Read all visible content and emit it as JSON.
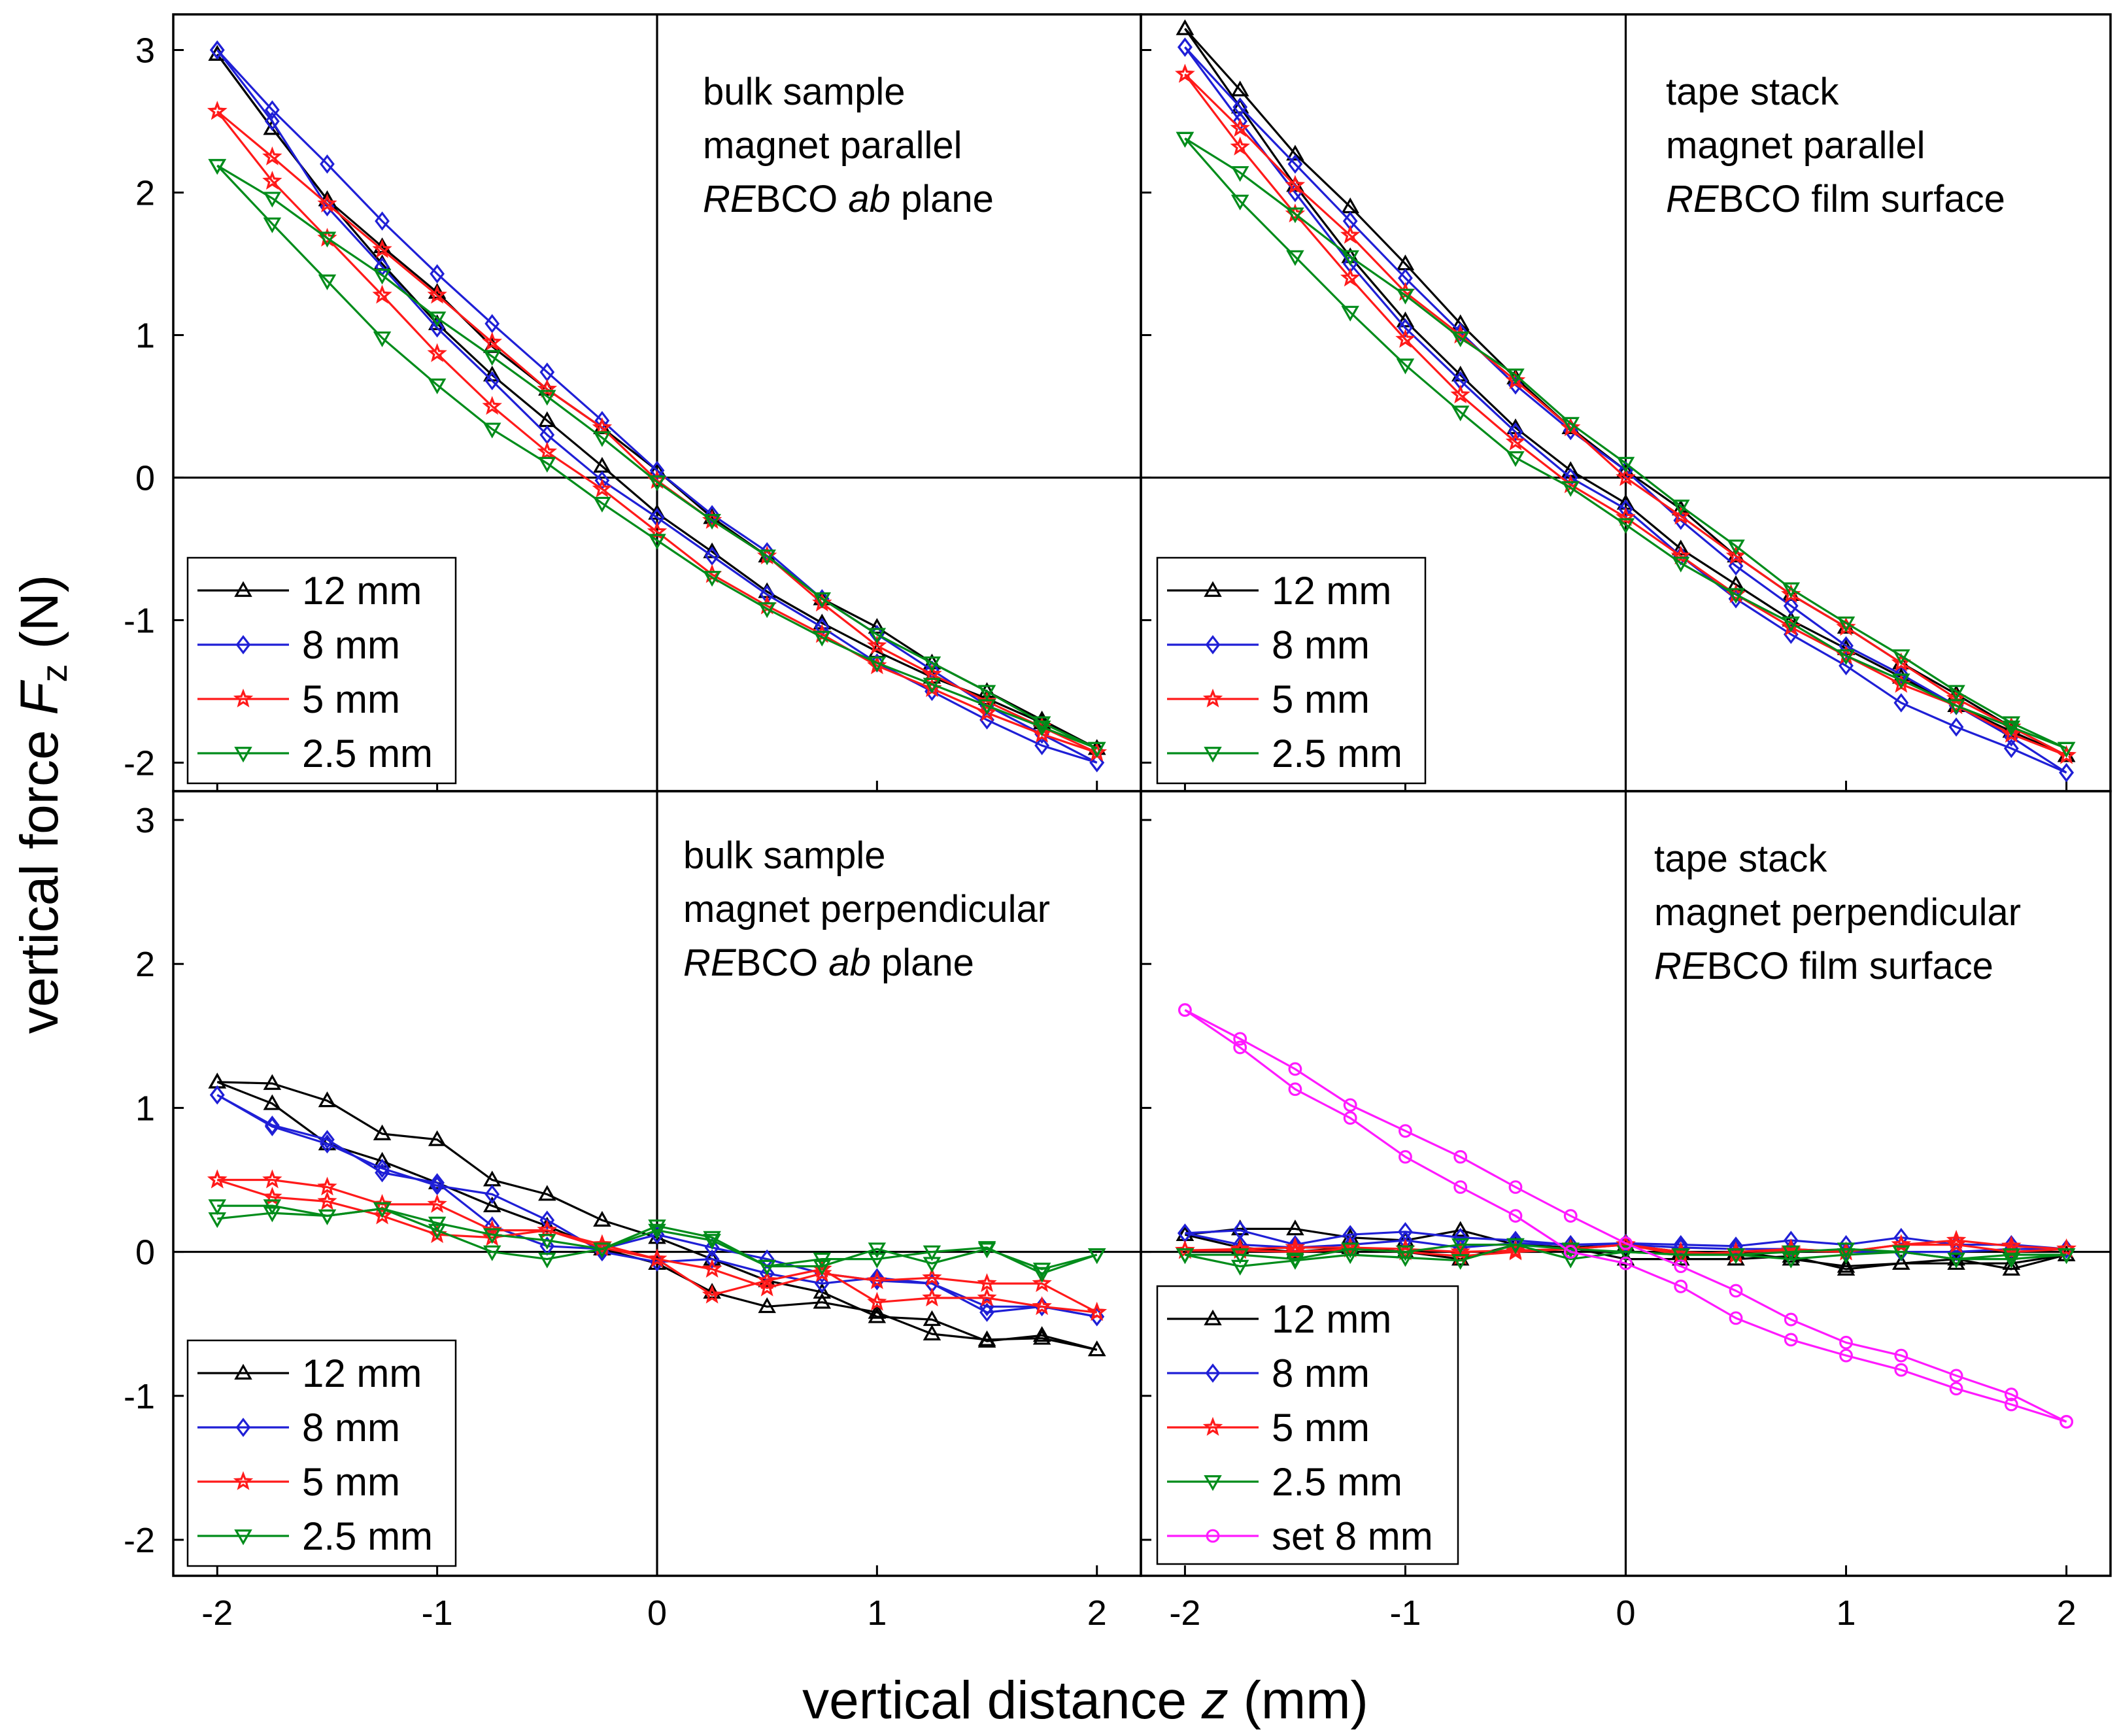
{
  "figure": {
    "xlabel_prefix": "vertical distance ",
    "xlabel_var": "z",
    "xlabel_suffix": " (mm)",
    "ylabel_prefix": "vertical force ",
    "ylabel_var": "F",
    "ylabel_sub": "z",
    "ylabel_suffix": " (N)"
  },
  "series_styles": {
    "12 mm": {
      "color": "#000000",
      "marker": "triangle-up"
    },
    "8 mm": {
      "color": "#1f1fd6",
      "marker": "diamond"
    },
    "5 mm": {
      "color": "#ff1a1a",
      "marker": "star"
    },
    "2.5 mm": {
      "color": "#008c1a",
      "marker": "triangle-down"
    },
    "set 8 mm": {
      "color": "#ff1aff",
      "marker": "circle"
    }
  },
  "chart_data": [
    {
      "type": "line",
      "id": "top-left",
      "annotation": [
        {
          "segments": [
            {
              "text": "bulk sample",
              "italic": false
            }
          ]
        },
        {
          "segments": [
            {
              "text": "magnet parallel",
              "italic": false
            }
          ]
        },
        {
          "segments": [
            {
              "text": "RE",
              "italic": true
            },
            {
              "text": "BCO ",
              "italic": false
            },
            {
              "text": "ab",
              "italic": true
            },
            {
              "text": " plane",
              "italic": false
            }
          ]
        }
      ],
      "xlim": [
        -2.2,
        2.2
      ],
      "ylim": [
        -2.2,
        3.25
      ],
      "xticks": [
        "-2",
        "-1",
        "0",
        "1",
        "2"
      ],
      "yticks": [
        "-2",
        "-1",
        "0",
        "1",
        "2",
        "3"
      ],
      "legend_position": "bottom-left",
      "legend": [
        "12 mm",
        "8 mm",
        "5 mm",
        "2.5 mm"
      ],
      "x": [
        -2,
        -1.75,
        -1.5,
        -1.25,
        -1,
        -0.75,
        -0.5,
        -0.25,
        0,
        0.25,
        0.5,
        0.75,
        1,
        1.25,
        1.5,
        1.75,
        2
      ],
      "series": [
        {
          "name": "12 mm",
          "up": [
            2.97,
            2.45,
            1.95,
            1.5,
            1.08,
            0.72,
            0.4,
            0.08,
            -0.25,
            -0.52,
            -0.8,
            -1.02,
            -1.22,
            -1.4,
            -1.55,
            -1.72,
            -1.9
          ],
          "down": [
            -1.9,
            -1.7,
            -1.5,
            -1.3,
            -1.05,
            -0.85,
            -0.55,
            -0.28,
            0.05,
            0.35,
            0.62,
            0.92,
            1.3,
            1.62,
            1.95,
            2.45,
            2.97
          ]
        },
        {
          "name": "8 mm",
          "up": [
            3.0,
            2.5,
            1.9,
            1.48,
            1.05,
            0.68,
            0.3,
            -0.02,
            -0.28,
            -0.55,
            -0.82,
            -1.05,
            -1.3,
            -1.5,
            -1.7,
            -1.88,
            -2.0
          ],
          "down": [
            -2.0,
            -1.8,
            -1.6,
            -1.35,
            -1.1,
            -0.85,
            -0.52,
            -0.26,
            0.05,
            0.4,
            0.74,
            1.08,
            1.43,
            1.8,
            2.2,
            2.58,
            3.0
          ]
        },
        {
          "name": "5 mm",
          "up": [
            2.57,
            2.08,
            1.68,
            1.28,
            0.87,
            0.5,
            0.18,
            -0.08,
            -0.38,
            -0.68,
            -0.9,
            -1.1,
            -1.32,
            -1.48,
            -1.65,
            -1.8,
            -1.93
          ],
          "down": [
            -1.93,
            -1.75,
            -1.57,
            -1.38,
            -1.18,
            -0.88,
            -0.55,
            -0.3,
            -0.02,
            0.35,
            0.62,
            0.95,
            1.28,
            1.6,
            1.92,
            2.25,
            2.57
          ]
        },
        {
          "name": "2.5 mm",
          "up": [
            2.19,
            1.78,
            1.38,
            0.98,
            0.65,
            0.34,
            0.1,
            -0.18,
            -0.44,
            -0.7,
            -0.92,
            -1.12,
            -1.3,
            -1.45,
            -1.6,
            -1.75,
            -1.9
          ],
          "down": [
            -1.9,
            -1.72,
            -1.5,
            -1.3,
            -1.1,
            -0.85,
            -0.55,
            -0.3,
            -0.03,
            0.28,
            0.57,
            0.85,
            1.12,
            1.42,
            1.68,
            1.96,
            2.19
          ]
        }
      ]
    },
    {
      "type": "line",
      "id": "top-right",
      "annotation": [
        {
          "segments": [
            {
              "text": "tape stack",
              "italic": false
            }
          ]
        },
        {
          "segments": [
            {
              "text": "magnet parallel",
              "italic": false
            }
          ]
        },
        {
          "segments": [
            {
              "text": "RE",
              "italic": true
            },
            {
              "text": "BCO film surface",
              "italic": false
            }
          ]
        }
      ],
      "xlim": [
        -2.2,
        2.2
      ],
      "ylim": [
        -2.2,
        3.25
      ],
      "xticks": [
        "-2",
        "-1",
        "0",
        "1",
        "2"
      ],
      "yticks": [
        "-2",
        "-1",
        "0",
        "1",
        "2",
        "3"
      ],
      "legend_position": "bottom-left",
      "legend": [
        "12 mm",
        "8 mm",
        "5 mm",
        "2.5 mm"
      ],
      "x": [
        -2,
        -1.75,
        -1.5,
        -1.25,
        -1,
        -0.75,
        -0.5,
        -0.25,
        0,
        0.25,
        0.5,
        0.75,
        1,
        1.25,
        1.5,
        1.75,
        2
      ],
      "series": [
        {
          "name": "12 mm",
          "up": [
            3.15,
            2.6,
            2.05,
            1.55,
            1.1,
            0.72,
            0.35,
            0.05,
            -0.18,
            -0.5,
            -0.75,
            -1.0,
            -1.2,
            -1.4,
            -1.6,
            -1.78,
            -1.95
          ],
          "down": [
            -1.95,
            -1.75,
            -1.52,
            -1.3,
            -1.05,
            -0.82,
            -0.55,
            -0.22,
            0.05,
            0.35,
            0.7,
            1.08,
            1.5,
            1.9,
            2.27,
            2.72,
            3.15
          ]
        },
        {
          "name": "8 mm",
          "up": [
            3.02,
            2.5,
            2.0,
            1.5,
            1.05,
            0.68,
            0.32,
            0.0,
            -0.22,
            -0.55,
            -0.85,
            -1.1,
            -1.32,
            -1.58,
            -1.75,
            -1.9,
            -2.07
          ],
          "down": [
            -2.07,
            -1.82,
            -1.6,
            -1.38,
            -1.18,
            -0.9,
            -0.62,
            -0.3,
            0.05,
            0.33,
            0.65,
            1.02,
            1.4,
            1.8,
            2.2,
            2.6,
            3.02
          ]
        },
        {
          "name": "5 mm",
          "up": [
            2.83,
            2.32,
            1.85,
            1.4,
            0.97,
            0.58,
            0.25,
            -0.05,
            -0.28,
            -0.55,
            -0.82,
            -1.05,
            -1.25,
            -1.45,
            -1.6,
            -1.8,
            -1.95
          ],
          "down": [
            -1.95,
            -1.75,
            -1.55,
            -1.3,
            -1.05,
            -0.82,
            -0.55,
            -0.27,
            0.0,
            0.35,
            0.68,
            1.0,
            1.3,
            1.7,
            2.05,
            2.45,
            2.83
          ]
        },
        {
          "name": "2.5 mm",
          "up": [
            2.38,
            1.94,
            1.55,
            1.16,
            0.79,
            0.46,
            0.14,
            -0.07,
            -0.33,
            -0.6,
            -0.82,
            -1.02,
            -1.25,
            -1.42,
            -1.6,
            -1.75,
            -1.9
          ],
          "down": [
            -1.9,
            -1.72,
            -1.5,
            -1.25,
            -1.02,
            -0.78,
            -0.48,
            -0.2,
            0.1,
            0.38,
            0.72,
            0.98,
            1.28,
            1.55,
            1.85,
            2.14,
            2.38
          ]
        }
      ]
    },
    {
      "type": "line",
      "id": "bottom-left",
      "annotation": [
        {
          "segments": [
            {
              "text": "bulk sample",
              "italic": false
            }
          ]
        },
        {
          "segments": [
            {
              "text": "magnet perpendicular",
              "italic": false
            }
          ]
        },
        {
          "segments": [
            {
              "text": "RE",
              "italic": true
            },
            {
              "text": "BCO ",
              "italic": false
            },
            {
              "text": "ab",
              "italic": true
            },
            {
              "text": " plane",
              "italic": false
            }
          ]
        }
      ],
      "xlim": [
        -2.2,
        2.2
      ],
      "ylim": [
        -2.25,
        3.2
      ],
      "xticks": [
        "-2",
        "-1",
        "0",
        "1",
        "2"
      ],
      "yticks": [
        "-2",
        "-1",
        "0",
        "1",
        "2",
        "3"
      ],
      "legend_position": "bottom-left",
      "legend": [
        "12 mm",
        "8 mm",
        "5 mm",
        "2.5 mm"
      ],
      "x": [
        -2,
        -1.75,
        -1.5,
        -1.25,
        -1,
        -0.75,
        -0.5,
        -0.25,
        0,
        0.25,
        0.5,
        0.75,
        1,
        1.25,
        1.5,
        1.75,
        2
      ],
      "series": [
        {
          "name": "12 mm",
          "up": [
            1.18,
            1.03,
            0.75,
            0.63,
            0.48,
            0.32,
            0.18,
            0.02,
            -0.08,
            -0.28,
            -0.38,
            -0.35,
            -0.42,
            -0.57,
            -0.61,
            -0.6,
            -0.68
          ],
          "down": [
            -0.68,
            -0.58,
            -0.62,
            -0.47,
            -0.45,
            -0.28,
            -0.2,
            -0.05,
            0.1,
            0.22,
            0.4,
            0.5,
            0.78,
            0.82,
            1.05,
            1.17,
            1.18
          ]
        },
        {
          "name": "8 mm",
          "up": [
            1.09,
            0.87,
            0.75,
            0.58,
            0.46,
            0.4,
            0.22,
            0.0,
            -0.07,
            -0.05,
            -0.15,
            -0.22,
            -0.18,
            -0.22,
            -0.42,
            -0.38,
            -0.45
          ],
          "down": [
            -0.45,
            -0.38,
            -0.38,
            -0.22,
            -0.2,
            -0.15,
            -0.05,
            0.03,
            0.12,
            0.02,
            0.04,
            0.18,
            0.48,
            0.55,
            0.78,
            0.88,
            1.09
          ]
        },
        {
          "name": "5 mm",
          "up": [
            0.5,
            0.38,
            0.35,
            0.25,
            0.12,
            0.1,
            0.15,
            0.05,
            -0.05,
            -0.3,
            -0.2,
            -0.12,
            -0.35,
            -0.32,
            -0.32,
            -0.38,
            -0.42
          ],
          "down": [
            -0.42,
            -0.22,
            -0.22,
            -0.18,
            -0.2,
            -0.15,
            -0.25,
            -0.12,
            -0.05,
            0.03,
            0.15,
            0.15,
            0.33,
            0.33,
            0.45,
            0.5,
            0.5
          ]
        },
        {
          "name": "2.5 mm",
          "up": [
            0.23,
            0.27,
            0.25,
            0.3,
            0.15,
            0.0,
            -0.05,
            0.02,
            0.15,
            0.08,
            -0.1,
            -0.05,
            -0.05,
            0.0,
            0.03,
            -0.15,
            -0.02
          ],
          "down": [
            -0.02,
            -0.12,
            0.02,
            -0.08,
            0.02,
            -0.1,
            -0.1,
            0.1,
            0.18,
            0.02,
            0.08,
            0.12,
            0.2,
            0.3,
            0.25,
            0.32,
            0.32
          ]
        }
      ]
    },
    {
      "type": "line",
      "id": "bottom-right",
      "annotation": [
        {
          "segments": [
            {
              "text": "tape stack",
              "italic": false
            }
          ]
        },
        {
          "segments": [
            {
              "text": "magnet perpendicular",
              "italic": false
            }
          ]
        },
        {
          "segments": [
            {
              "text": "RE",
              "italic": true
            },
            {
              "text": "BCO film surface",
              "italic": false
            }
          ]
        }
      ],
      "xlim": [
        -2.2,
        2.2
      ],
      "ylim": [
        -2.25,
        3.2
      ],
      "xticks": [
        "-2",
        "-1",
        "0",
        "1",
        "2"
      ],
      "yticks": [
        "-2",
        "-1",
        "0",
        "1",
        "2",
        "3"
      ],
      "legend_position": "bottom-left",
      "legend": [
        "12 mm",
        "8 mm",
        "5 mm",
        "2.5 mm",
        "set 8 mm"
      ],
      "x": [
        -2,
        -1.75,
        -1.5,
        -1.25,
        -1,
        -0.75,
        -0.5,
        -0.25,
        0,
        0.25,
        0.5,
        0.75,
        1,
        1.25,
        1.5,
        1.75,
        2
      ],
      "series": [
        {
          "name": "12 mm",
          "up": [
            0.12,
            0.16,
            0.16,
            0.1,
            0.08,
            0.15,
            0.05,
            0.03,
            -0.05,
            -0.05,
            -0.05,
            -0.03,
            -0.12,
            -0.08,
            -0.05,
            -0.12,
            -0.02
          ],
          "down": [
            -0.02,
            -0.08,
            -0.08,
            -0.08,
            -0.1,
            -0.05,
            0.0,
            0.0,
            0.05,
            0.03,
            0.05,
            -0.05,
            0.0,
            0.03,
            0.0,
            0.03,
            0.12
          ]
        },
        {
          "name": "8 mm",
          "up": [
            0.13,
            0.15,
            0.05,
            0.12,
            0.14,
            0.1,
            0.08,
            0.05,
            0.06,
            0.05,
            0.04,
            0.08,
            0.05,
            0.1,
            0.05,
            0.05,
            0.02
          ],
          "down": [
            0.02,
            0.02,
            0.0,
            0.0,
            0.0,
            0.02,
            0.02,
            0.03,
            0.05,
            0.05,
            0.06,
            0.03,
            0.08,
            0.05,
            0.03,
            0.05,
            0.13
          ]
        },
        {
          "name": "5 mm",
          "up": [
            0.01,
            0.02,
            0.03,
            0.03,
            0.02,
            0.0,
            0.01,
            0.02,
            0.05,
            -0.02,
            0.0,
            0.02,
            0.0,
            0.05,
            0.08,
            0.04,
            0.02
          ],
          "down": [
            0.02,
            0.0,
            0.05,
            0.05,
            0.0,
            0.01,
            -0.02,
            0.0,
            0.05,
            0.02,
            0.0,
            -0.03,
            0.0,
            0.02,
            0.0,
            0.01,
            0.01
          ]
        },
        {
          "name": "2.5 mm",
          "up": [
            -0.02,
            -0.1,
            -0.06,
            -0.02,
            -0.04,
            -0.06,
            0.05,
            -0.05,
            0.0,
            -0.02,
            -0.02,
            -0.05,
            -0.02,
            0.0,
            -0.05,
            -0.02,
            -0.02
          ],
          "down": [
            -0.02,
            -0.05,
            -0.05,
            0.0,
            0.02,
            0.0,
            -0.02,
            -0.02,
            0.0,
            0.02,
            0.05,
            0.05,
            0.0,
            0.02,
            -0.05,
            -0.02,
            -0.02
          ]
        },
        {
          "name": "set 8 mm",
          "up": [
            1.68,
            1.42,
            1.13,
            0.93,
            0.66,
            0.45,
            0.25,
            0.0,
            -0.08,
            -0.24,
            -0.46,
            -0.61,
            -0.72,
            -0.82,
            -0.95,
            -1.06,
            -1.18
          ],
          "down": [
            -1.18,
            -0.99,
            -0.86,
            -0.72,
            -0.63,
            -0.47,
            -0.27,
            -0.1,
            0.06,
            0.25,
            0.45,
            0.66,
            0.84,
            1.02,
            1.27,
            1.48,
            1.68
          ]
        }
      ]
    }
  ]
}
